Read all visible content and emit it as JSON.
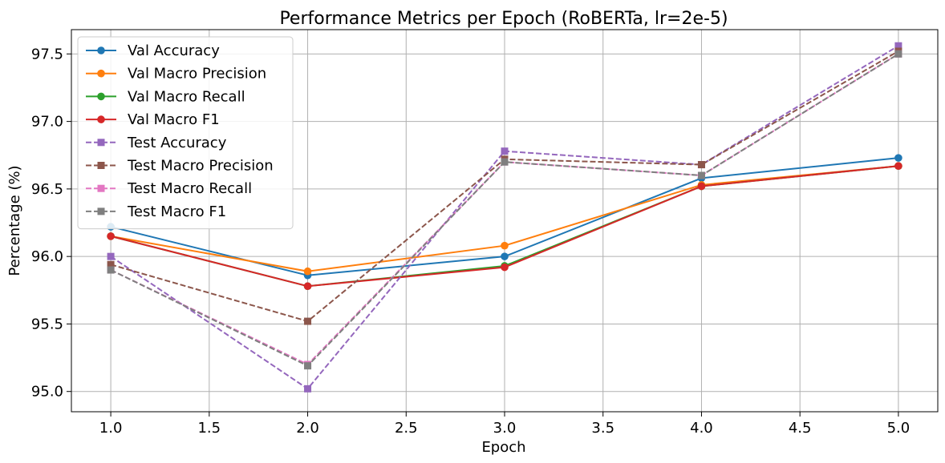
{
  "chart_data": {
    "type": "line",
    "title": "Performance Metrics per Epoch (RoBERTa, lr=2e-5)",
    "xlabel": "Epoch",
    "ylabel": "Percentage (%)",
    "xlim": [
      0.8,
      5.2
    ],
    "ylim": [
      94.85,
      97.68
    ],
    "xticks": [
      1.0,
      1.5,
      2.0,
      2.5,
      3.0,
      3.5,
      4.0,
      4.5,
      5.0
    ],
    "xtick_labels": [
      "1.0",
      "1.5",
      "2.0",
      "2.5",
      "3.0",
      "3.5",
      "4.0",
      "4.5",
      "5.0"
    ],
    "yticks": [
      95.0,
      95.5,
      96.0,
      96.5,
      97.0,
      97.5
    ],
    "ytick_labels": [
      "95.0",
      "95.5",
      "96.0",
      "96.5",
      "97.0",
      "97.5"
    ],
    "grid": true,
    "legend_position": "upper-left",
    "x": [
      1,
      2,
      3,
      4,
      5
    ],
    "series": [
      {
        "name": "Val Accuracy",
        "color": "#1f77b4",
        "style": "solid",
        "marker": "circle",
        "values": [
          96.22,
          95.86,
          96.0,
          96.58,
          96.73
        ]
      },
      {
        "name": "Val Macro Precision",
        "color": "#ff7f0e",
        "style": "solid",
        "marker": "circle",
        "values": [
          96.15,
          95.89,
          96.08,
          96.53,
          96.67
        ]
      },
      {
        "name": "Val Macro Recall",
        "color": "#2ca02c",
        "style": "solid",
        "marker": "circle",
        "values": [
          96.15,
          95.78,
          95.93,
          96.52,
          96.67
        ]
      },
      {
        "name": "Val Macro F1",
        "color": "#d62728",
        "style": "solid",
        "marker": "circle",
        "values": [
          96.15,
          95.78,
          95.92,
          96.52,
          96.67
        ]
      },
      {
        "name": "Test Accuracy",
        "color": "#9467bd",
        "style": "dashed",
        "marker": "square",
        "values": [
          96.0,
          95.02,
          96.78,
          96.68,
          97.56
        ]
      },
      {
        "name": "Test Macro Precision",
        "color": "#8c564b",
        "style": "dashed",
        "marker": "square",
        "values": [
          95.94,
          95.52,
          96.72,
          96.68,
          97.52
        ]
      },
      {
        "name": "Test Macro Recall",
        "color": "#e377c2",
        "style": "dashed",
        "marker": "square",
        "values": [
          95.9,
          95.2,
          96.7,
          96.6,
          97.5
        ]
      },
      {
        "name": "Test Macro F1",
        "color": "#7f7f7f",
        "style": "dashed",
        "marker": "square",
        "values": [
          95.9,
          95.19,
          96.7,
          96.6,
          97.5
        ]
      }
    ]
  }
}
